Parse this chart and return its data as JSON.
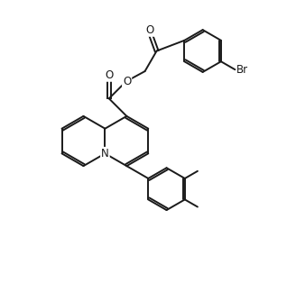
{
  "background_color": "#ffffff",
  "line_color": "#1a1a1a",
  "line_width": 1.4,
  "font_size": 8.5,
  "figsize": [
    3.28,
    3.14
  ],
  "dpi": 100,
  "xlim": [
    0,
    10
  ],
  "ylim": [
    0,
    9.57
  ]
}
